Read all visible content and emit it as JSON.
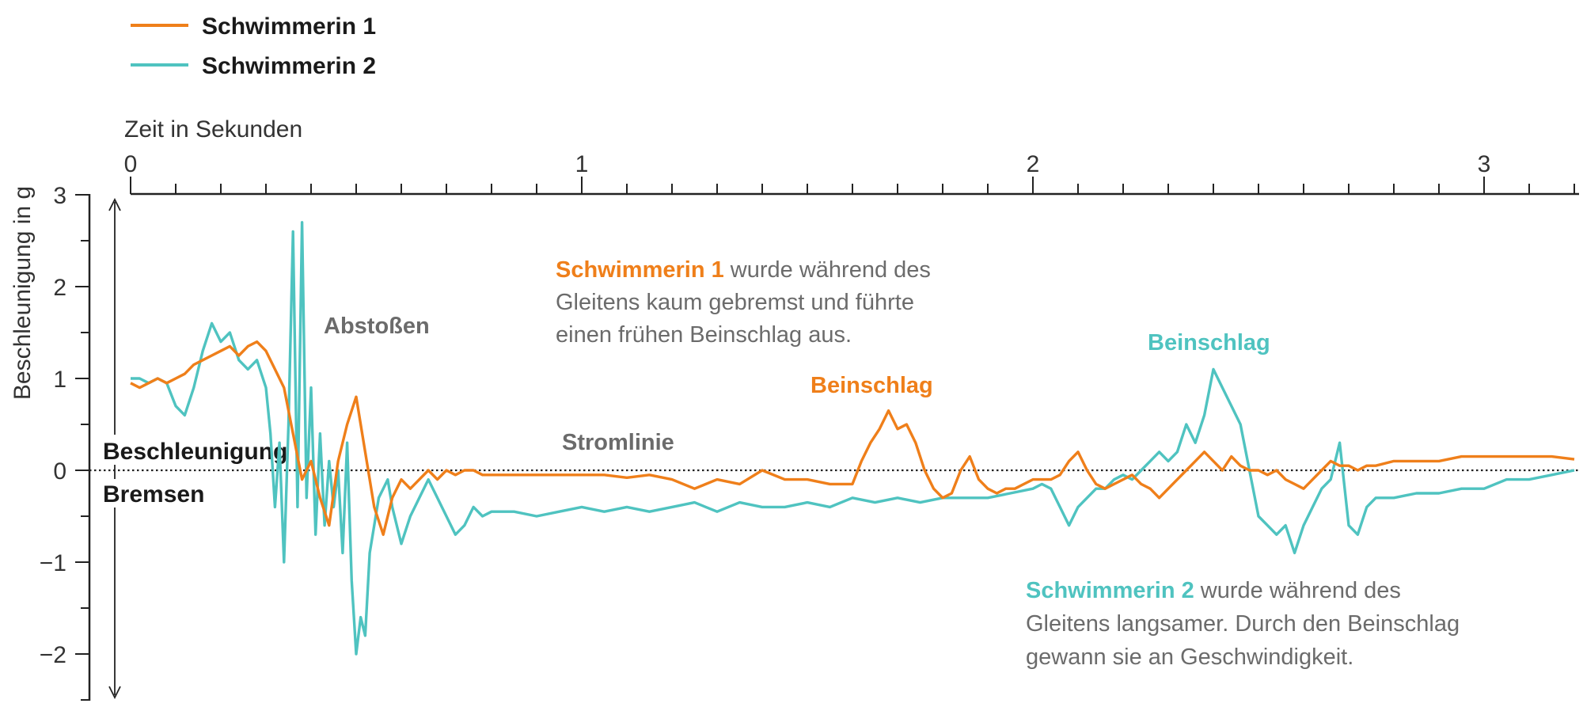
{
  "colors": {
    "s1": "#ef7f1a",
    "s2": "#4fc3c0",
    "annot_gray": "#6b6b6b",
    "axis": "#222222"
  },
  "legend": [
    {
      "label": "Schwimmerin 1",
      "color": "#ef7f1a"
    },
    {
      "label": "Schwimmerin 2",
      "color": "#4fc3c0"
    }
  ],
  "zones": {
    "up": "Beschleunigung",
    "down": "Bremsen"
  },
  "annotations": {
    "abstossen": "Abstoßen",
    "stromlinie": "Stromlinie",
    "beinschlag_s1": "Beinschlag",
    "beinschlag_s2": "Beinschlag",
    "note_s1": {
      "bold": "Schwimmerin 1",
      "line1": " wurde während des",
      "line2": "Gleitens kaum gebremst und führte",
      "line3": "einen frühen Beinschlag aus."
    },
    "note_s2": {
      "bold": "Schwimmerin 2",
      "line1": " wurde während des",
      "line2": "Gleitens langsamer. Durch den Beinschlag",
      "line3": "gewann sie an Geschwindigkeit."
    }
  },
  "chart_data": {
    "type": "line",
    "xlabel": "Zeit in Sekunden",
    "ylabel": "Beschleunigung in g",
    "xlim": [
      0,
      3.2
    ],
    "ylim": [
      -2.5,
      3
    ],
    "x_ticks": [
      0,
      1,
      2,
      3
    ],
    "y_ticks": [
      3,
      2,
      1,
      0,
      -1,
      -2
    ],
    "x_tick_labels": [
      "0",
      "1",
      "2",
      "3"
    ],
    "y_tick_labels": [
      "3",
      "2",
      "1",
      "0",
      "−1",
      "−2"
    ],
    "zero_line": "dotted",
    "series": [
      {
        "name": "Schwimmerin 1",
        "color": "#ef7f1a",
        "x": [
          0.0,
          0.02,
          0.04,
          0.06,
          0.08,
          0.1,
          0.12,
          0.14,
          0.16,
          0.18,
          0.2,
          0.22,
          0.24,
          0.26,
          0.28,
          0.3,
          0.32,
          0.34,
          0.36,
          0.38,
          0.4,
          0.42,
          0.44,
          0.46,
          0.48,
          0.5,
          0.52,
          0.54,
          0.56,
          0.58,
          0.6,
          0.62,
          0.64,
          0.66,
          0.68,
          0.7,
          0.72,
          0.74,
          0.76,
          0.78,
          0.8,
          0.85,
          0.9,
          0.95,
          1.0,
          1.05,
          1.1,
          1.15,
          1.2,
          1.25,
          1.3,
          1.35,
          1.4,
          1.45,
          1.5,
          1.55,
          1.6,
          1.62,
          1.64,
          1.66,
          1.68,
          1.7,
          1.72,
          1.74,
          1.76,
          1.78,
          1.8,
          1.82,
          1.84,
          1.86,
          1.88,
          1.9,
          1.92,
          1.94,
          1.96,
          1.98,
          2.0,
          2.02,
          2.04,
          2.06,
          2.08,
          2.1,
          2.12,
          2.14,
          2.16,
          2.18,
          2.2,
          2.22,
          2.24,
          2.26,
          2.28,
          2.3,
          2.32,
          2.34,
          2.36,
          2.38,
          2.4,
          2.42,
          2.44,
          2.46,
          2.48,
          2.5,
          2.52,
          2.54,
          2.56,
          2.58,
          2.6,
          2.62,
          2.64,
          2.66,
          2.68,
          2.7,
          2.72,
          2.74,
          2.76,
          2.8,
          2.85,
          2.9,
          2.95,
          3.0,
          3.05,
          3.1,
          3.15,
          3.2
        ],
        "values": [
          0.95,
          0.9,
          0.95,
          1.0,
          0.95,
          1.0,
          1.05,
          1.15,
          1.2,
          1.25,
          1.3,
          1.35,
          1.25,
          1.35,
          1.4,
          1.3,
          1.1,
          0.9,
          0.4,
          -0.1,
          0.1,
          -0.3,
          -0.6,
          0.1,
          0.5,
          0.8,
          0.2,
          -0.4,
          -0.7,
          -0.3,
          -0.1,
          -0.2,
          -0.1,
          0.0,
          -0.1,
          0.0,
          -0.05,
          0.0,
          0.0,
          -0.05,
          -0.05,
          -0.05,
          -0.05,
          -0.05,
          -0.05,
          -0.05,
          -0.08,
          -0.05,
          -0.1,
          -0.2,
          -0.1,
          -0.15,
          0.0,
          -0.1,
          -0.1,
          -0.15,
          -0.15,
          0.1,
          0.3,
          0.45,
          0.65,
          0.45,
          0.5,
          0.3,
          0.0,
          -0.2,
          -0.3,
          -0.25,
          0.0,
          0.15,
          -0.1,
          -0.2,
          -0.25,
          -0.2,
          -0.2,
          -0.15,
          -0.1,
          -0.1,
          -0.1,
          -0.05,
          0.1,
          0.2,
          0.0,
          -0.15,
          -0.2,
          -0.15,
          -0.1,
          -0.05,
          -0.15,
          -0.2,
          -0.3,
          -0.2,
          -0.1,
          0.0,
          0.1,
          0.2,
          0.1,
          0.0,
          0.15,
          0.05,
          0.0,
          0.0,
          -0.05,
          0.0,
          -0.1,
          -0.15,
          -0.2,
          -0.1,
          0.0,
          0.1,
          0.05,
          0.05,
          0.0,
          0.05,
          0.05,
          0.1,
          0.1,
          0.1,
          0.15,
          0.15,
          0.15,
          0.15,
          0.15,
          0.12
        ]
      },
      {
        "name": "Schwimmerin 2",
        "color": "#4fc3c0",
        "x": [
          0.0,
          0.02,
          0.04,
          0.06,
          0.08,
          0.1,
          0.12,
          0.14,
          0.16,
          0.18,
          0.2,
          0.22,
          0.24,
          0.26,
          0.28,
          0.3,
          0.31,
          0.32,
          0.33,
          0.34,
          0.35,
          0.36,
          0.37,
          0.38,
          0.39,
          0.4,
          0.41,
          0.42,
          0.43,
          0.44,
          0.45,
          0.46,
          0.47,
          0.48,
          0.49,
          0.5,
          0.51,
          0.52,
          0.53,
          0.54,
          0.55,
          0.56,
          0.57,
          0.58,
          0.6,
          0.62,
          0.64,
          0.66,
          0.68,
          0.7,
          0.72,
          0.74,
          0.76,
          0.78,
          0.8,
          0.85,
          0.9,
          0.95,
          1.0,
          1.05,
          1.1,
          1.15,
          1.2,
          1.25,
          1.3,
          1.35,
          1.4,
          1.45,
          1.5,
          1.55,
          1.6,
          1.65,
          1.7,
          1.75,
          1.8,
          1.85,
          1.9,
          1.95,
          2.0,
          2.02,
          2.04,
          2.06,
          2.08,
          2.1,
          2.12,
          2.14,
          2.16,
          2.18,
          2.2,
          2.22,
          2.24,
          2.26,
          2.28,
          2.3,
          2.32,
          2.34,
          2.36,
          2.38,
          2.4,
          2.42,
          2.44,
          2.46,
          2.48,
          2.5,
          2.52,
          2.54,
          2.56,
          2.58,
          2.6,
          2.62,
          2.64,
          2.66,
          2.68,
          2.7,
          2.72,
          2.74,
          2.76,
          2.8,
          2.85,
          2.9,
          2.95,
          3.0,
          3.05,
          3.1,
          3.15,
          3.2
        ],
        "values": [
          1.0,
          1.0,
          0.95,
          1.0,
          0.95,
          0.7,
          0.6,
          0.9,
          1.3,
          1.6,
          1.4,
          1.5,
          1.2,
          1.1,
          1.2,
          0.9,
          0.4,
          -0.4,
          0.3,
          -1.0,
          0.5,
          2.6,
          -0.4,
          2.7,
          -0.3,
          0.9,
          -0.7,
          0.4,
          -0.6,
          0.1,
          -0.4,
          0.0,
          -0.9,
          0.3,
          -1.2,
          -2.0,
          -1.6,
          -1.8,
          -0.9,
          -0.6,
          -0.3,
          -0.2,
          -0.1,
          -0.4,
          -0.8,
          -0.5,
          -0.3,
          -0.1,
          -0.3,
          -0.5,
          -0.7,
          -0.6,
          -0.4,
          -0.5,
          -0.45,
          -0.45,
          -0.5,
          -0.45,
          -0.4,
          -0.45,
          -0.4,
          -0.45,
          -0.4,
          -0.35,
          -0.45,
          -0.35,
          -0.4,
          -0.4,
          -0.35,
          -0.4,
          -0.3,
          -0.35,
          -0.3,
          -0.35,
          -0.3,
          -0.3,
          -0.3,
          -0.25,
          -0.2,
          -0.15,
          -0.2,
          -0.4,
          -0.6,
          -0.4,
          -0.3,
          -0.2,
          -0.2,
          -0.1,
          -0.05,
          -0.1,
          0.0,
          0.1,
          0.2,
          0.1,
          0.2,
          0.5,
          0.3,
          0.6,
          1.1,
          0.9,
          0.7,
          0.5,
          0.0,
          -0.5,
          -0.6,
          -0.7,
          -0.6,
          -0.9,
          -0.6,
          -0.4,
          -0.2,
          -0.1,
          0.3,
          -0.6,
          -0.7,
          -0.4,
          -0.3,
          -0.3,
          -0.25,
          -0.25,
          -0.2,
          -0.2,
          -0.1,
          -0.1,
          -0.05,
          0.0
        ]
      }
    ]
  }
}
